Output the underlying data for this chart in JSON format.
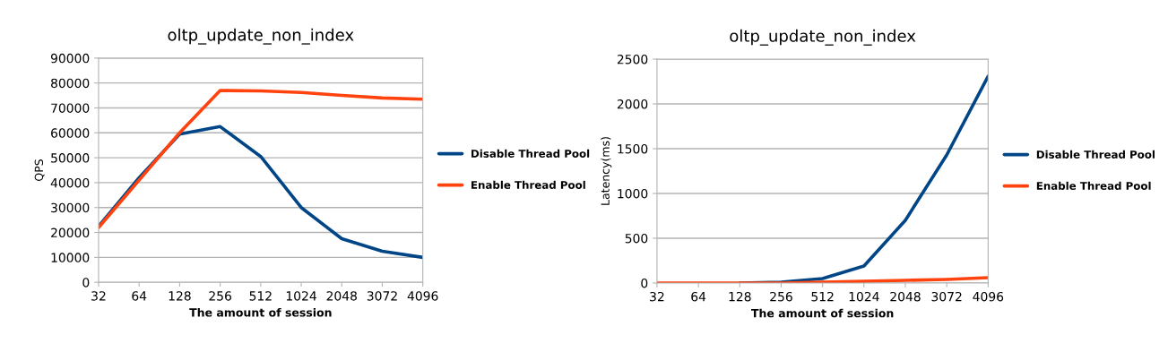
{
  "chart_data": [
    {
      "type": "line",
      "title": "oltp_update_non_index",
      "xlabel": "The amount of session",
      "ylabel": "QPS",
      "categories": [
        "32",
        "64",
        "128",
        "256",
        "512",
        "1024",
        "2048",
        "3072",
        "4096"
      ],
      "series": [
        {
          "name": "Disable Thread Pool",
          "color": "#004586",
          "values": [
            22500,
            42000,
            59500,
            62500,
            50500,
            30000,
            17500,
            12500,
            10000
          ]
        },
        {
          "name": "Enable Thread Pool",
          "color": "#ff420e",
          "values": [
            22000,
            41000,
            60000,
            77000,
            76800,
            76200,
            75000,
            74000,
            73500
          ]
        }
      ],
      "ylim": [
        0,
        90000
      ],
      "yticks": [
        0,
        10000,
        20000,
        30000,
        40000,
        50000,
        60000,
        70000,
        80000,
        90000
      ],
      "grid": "y",
      "legend": "right",
      "marker": "none",
      "line_style": "solid"
    },
    {
      "type": "line",
      "title": "oltp_update_non_index",
      "xlabel": "The amount of session",
      "ylabel": "Latency(ms)",
      "categories": [
        "32",
        "64",
        "128",
        "256",
        "512",
        "1024",
        "2048",
        "3072",
        "4096"
      ],
      "series": [
        {
          "name": "Disable Thread Pool",
          "color": "#004586",
          "values": [
            null,
            null,
            0,
            10,
            50,
            190,
            700,
            1430,
            2310
          ]
        },
        {
          "name": "Enable Thread Pool",
          "color": "#ff420e",
          "values": [
            0,
            0,
            0,
            0,
            10,
            20,
            30,
            40,
            60
          ]
        }
      ],
      "ylim": [
        0,
        2500
      ],
      "yticks": [
        0,
        500,
        1000,
        1500,
        2000,
        2500
      ],
      "grid": "y",
      "legend": "right",
      "marker": "none",
      "line_style": "solid"
    }
  ]
}
